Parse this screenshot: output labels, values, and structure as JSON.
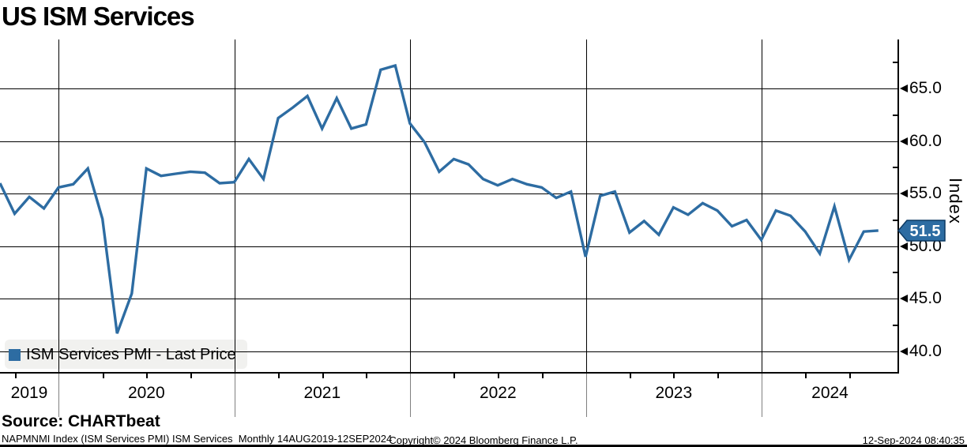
{
  "title": "US ISM Services",
  "source_line": "Source: CHARTbeat",
  "footer": {
    "left": "NAPMNMI Index (ISM Services PMI) ISM Services  Monthly 14AUG2019-12SEP2024",
    "center": "Copyright© 2024 Bloomberg Finance L.P.",
    "right": "12-Sep-2024 08:40:35"
  },
  "legend": {
    "label": "ISM Services PMI - Last Price"
  },
  "last_price_tag": {
    "value": "51.5"
  },
  "axis": {
    "y_title": "Index",
    "y_tick_labels": [
      "65.0",
      "60.0",
      "55.0",
      "50.0",
      "45.0",
      "40.0"
    ],
    "x_labels": [
      "2019",
      "2020",
      "2021",
      "2022",
      "2023",
      "2024"
    ]
  },
  "colors": {
    "line": "#2D6CA2",
    "tag_fill": "#2D6CA2",
    "tag_border": "#0d3a63",
    "tag_text": "#ffffff",
    "legend_marker": "#2D6CA2",
    "legend_bg": "#f1f1ef",
    "grid": "#000000"
  },
  "chart_data": {
    "type": "line",
    "title": "US ISM Services",
    "series_name": "ISM Services PMI - Last Price",
    "frequency": "monthly",
    "x_range_label": "14AUG2019-12SEP2024",
    "ylabel": "Index",
    "ylim": [
      38,
      70
    ],
    "y_major_ticks": [
      65,
      60,
      55,
      50,
      45,
      40
    ],
    "y_minor_ticks": [
      67.5,
      62.5,
      57.5,
      52.5,
      47.5,
      42.5
    ],
    "grid": true,
    "legend_position": "bottom-left",
    "last_value": 51.5,
    "months": [
      "2019-08",
      "2019-09",
      "2019-10",
      "2019-11",
      "2019-12",
      "2020-01",
      "2020-02",
      "2020-03",
      "2020-04",
      "2020-05",
      "2020-06",
      "2020-07",
      "2020-08",
      "2020-09",
      "2020-10",
      "2020-11",
      "2020-12",
      "2021-01",
      "2021-02",
      "2021-03",
      "2021-04",
      "2021-05",
      "2021-06",
      "2021-07",
      "2021-08",
      "2021-09",
      "2021-10",
      "2021-11",
      "2021-12",
      "2022-01",
      "2022-02",
      "2022-03",
      "2022-04",
      "2022-05",
      "2022-06",
      "2022-07",
      "2022-08",
      "2022-09",
      "2022-10",
      "2022-11",
      "2022-12",
      "2023-01",
      "2023-02",
      "2023-03",
      "2023-04",
      "2023-05",
      "2023-06",
      "2023-07",
      "2023-08",
      "2023-09",
      "2023-10",
      "2023-11",
      "2023-12",
      "2024-01",
      "2024-02",
      "2024-03",
      "2024-04",
      "2024-05",
      "2024-06",
      "2024-07",
      "2024-08"
    ],
    "values": [
      56.0,
      53.1,
      54.7,
      53.6,
      55.6,
      55.9,
      57.4,
      52.6,
      41.7,
      45.5,
      57.4,
      56.7,
      56.9,
      57.1,
      57.0,
      56.0,
      56.1,
      58.3,
      56.4,
      62.2,
      63.2,
      64.3,
      61.2,
      64.1,
      61.2,
      61.6,
      66.8,
      67.2,
      61.7,
      59.9,
      57.1,
      58.3,
      57.8,
      56.4,
      55.8,
      56.4,
      55.9,
      55.6,
      54.6,
      55.2,
      49.0,
      54.8,
      55.2,
      51.3,
      52.4,
      51.1,
      53.7,
      53.0,
      54.1,
      53.4,
      51.9,
      52.5,
      50.6,
      53.4,
      52.9,
      51.4,
      49.3,
      53.8,
      48.7,
      51.4,
      51.5
    ]
  }
}
